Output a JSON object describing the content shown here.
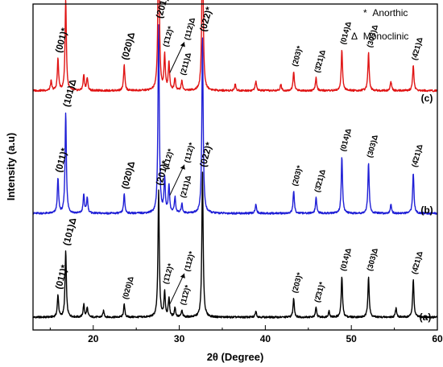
{
  "chart_data": {
    "type": "line",
    "xlabel": "2θ (Degree)",
    "ylabel": "Intensity (a.u)",
    "xlim": [
      13,
      60
    ],
    "xticks": [
      20,
      30,
      40,
      50,
      60
    ],
    "y_ticks_shown": false,
    "grid": false,
    "legend": {
      "position": "top-right",
      "entries": [
        {
          "symbol": "*",
          "label": "Anorthic"
        },
        {
          "symbol": "Δ",
          "label": "Monoclinic"
        }
      ]
    },
    "series": [
      {
        "name": "(a)",
        "color": "#000000",
        "baseline": 0.02,
        "peaks": [
          {
            "x": 15.9,
            "h": 0.07
          },
          {
            "x": 16.8,
            "h": 0.21
          },
          {
            "x": 18.9,
            "h": 0.04
          },
          {
            "x": 19.3,
            "h": 0.03
          },
          {
            "x": 21.2,
            "h": 0.02
          },
          {
            "x": 23.6,
            "h": 0.04
          },
          {
            "x": 27.6,
            "h": 0.4
          },
          {
            "x": 28.3,
            "h": 0.08
          },
          {
            "x": 28.8,
            "h": 0.06
          },
          {
            "x": 29.5,
            "h": 0.03
          },
          {
            "x": 30.3,
            "h": 0.02
          },
          {
            "x": 32.7,
            "h": 0.46
          },
          {
            "x": 38.9,
            "h": 0.02
          },
          {
            "x": 43.3,
            "h": 0.06
          },
          {
            "x": 45.9,
            "h": 0.03
          },
          {
            "x": 47.4,
            "h": 0.02
          },
          {
            "x": 48.9,
            "h": 0.13
          },
          {
            "x": 52.0,
            "h": 0.13
          },
          {
            "x": 55.2,
            "h": 0.03
          },
          {
            "x": 57.2,
            "h": 0.12
          }
        ]
      },
      {
        "name": "(b)",
        "color": "#1f1fd6",
        "baseline": 0.35,
        "peaks": [
          {
            "x": 15.9,
            "h": 0.11
          },
          {
            "x": 16.8,
            "h": 0.32
          },
          {
            "x": 18.9,
            "h": 0.06
          },
          {
            "x": 19.3,
            "h": 0.05
          },
          {
            "x": 23.6,
            "h": 0.06
          },
          {
            "x": 27.6,
            "h": 0.6
          },
          {
            "x": 28.3,
            "h": 0.11
          },
          {
            "x": 28.8,
            "h": 0.09
          },
          {
            "x": 29.5,
            "h": 0.05
          },
          {
            "x": 30.3,
            "h": 0.03
          },
          {
            "x": 32.7,
            "h": 0.56
          },
          {
            "x": 38.9,
            "h": 0.03
          },
          {
            "x": 43.3,
            "h": 0.07
          },
          {
            "x": 45.9,
            "h": 0.05
          },
          {
            "x": 48.9,
            "h": 0.18
          },
          {
            "x": 52.0,
            "h": 0.16
          },
          {
            "x": 54.6,
            "h": 0.03
          },
          {
            "x": 57.2,
            "h": 0.13
          }
        ]
      },
      {
        "name": "(c)",
        "color": "#e01414",
        "baseline": 0.74,
        "peaks": [
          {
            "x": 15.1,
            "h": 0.03
          },
          {
            "x": 15.9,
            "h": 0.1
          },
          {
            "x": 16.8,
            "h": 0.29
          },
          {
            "x": 18.9,
            "h": 0.05
          },
          {
            "x": 19.3,
            "h": 0.04
          },
          {
            "x": 23.6,
            "h": 0.08
          },
          {
            "x": 27.6,
            "h": 0.57
          },
          {
            "x": 28.3,
            "h": 0.11
          },
          {
            "x": 28.8,
            "h": 0.09
          },
          {
            "x": 29.5,
            "h": 0.04
          },
          {
            "x": 30.3,
            "h": 0.03
          },
          {
            "x": 32.7,
            "h": 0.53
          },
          {
            "x": 36.5,
            "h": 0.02
          },
          {
            "x": 38.9,
            "h": 0.03
          },
          {
            "x": 41.8,
            "h": 0.02
          },
          {
            "x": 43.3,
            "h": 0.06
          },
          {
            "x": 45.9,
            "h": 0.04
          },
          {
            "x": 48.9,
            "h": 0.13
          },
          {
            "x": 52.0,
            "h": 0.12
          },
          {
            "x": 54.6,
            "h": 0.03
          },
          {
            "x": 57.2,
            "h": 0.08
          }
        ]
      }
    ],
    "peak_labels": [
      {
        "series": "(a)",
        "x": 15.9,
        "text": "(011)*",
        "big": true
      },
      {
        "series": "(a)",
        "x": 16.8,
        "text": "(101)Δ",
        "big": true
      },
      {
        "series": "(a)",
        "x": 23.6,
        "text": "(020)Δ",
        "big": false
      },
      {
        "series": "(a)",
        "x": 27.6,
        "text": "(201)*",
        "big": true
      },
      {
        "series": "(a)",
        "x": 28.3,
        "text": "(1̄12)*",
        "big": false
      },
      {
        "series": "(a)",
        "x": 29.6,
        "text": "(112)*",
        "big": false,
        "arrow": true
      },
      {
        "series": "(a)",
        "x": 30.3,
        "text": "(11̄2)*",
        "big": false
      },
      {
        "series": "(a)",
        "x": 32.7,
        "text": "(022)*",
        "big": true
      },
      {
        "series": "(a)",
        "x": 43.3,
        "text": "(203)*",
        "big": false
      },
      {
        "series": "(a)",
        "x": 45.9,
        "text": "(2̄31)*",
        "big": false
      },
      {
        "series": "(a)",
        "x": 48.9,
        "text": "(014)Δ",
        "big": false
      },
      {
        "series": "(a)",
        "x": 52.0,
        "text": "(303)Δ",
        "big": false
      },
      {
        "series": "(a)",
        "x": 57.2,
        "text": "(4̄21)Δ",
        "big": false
      },
      {
        "series": "(b)",
        "x": 15.9,
        "text": "(011)*",
        "big": true
      },
      {
        "series": "(b)",
        "x": 16.8,
        "text": "(101)Δ",
        "big": true
      },
      {
        "series": "(b)",
        "x": 23.6,
        "text": "(020)Δ",
        "big": true
      },
      {
        "series": "(b)",
        "x": 27.6,
        "text": "(201)*",
        "big": true
      },
      {
        "series": "(b)",
        "x": 28.3,
        "text": "(1̄12)*",
        "big": false
      },
      {
        "series": "(b)",
        "x": 29.6,
        "text": "(112)*",
        "big": false,
        "arrow": true
      },
      {
        "series": "(b)",
        "x": 30.3,
        "text": "(211)Δ",
        "big": false
      },
      {
        "series": "(b)",
        "x": 32.7,
        "text": "(022)*",
        "big": true
      },
      {
        "series": "(b)",
        "x": 43.3,
        "text": "(203)*",
        "big": false
      },
      {
        "series": "(b)",
        "x": 45.9,
        "text": "(3̄21)Δ",
        "big": false
      },
      {
        "series": "(b)",
        "x": 48.9,
        "text": "(014)Δ",
        "big": false
      },
      {
        "series": "(b)",
        "x": 52.0,
        "text": "(303)Δ",
        "big": false
      },
      {
        "series": "(b)",
        "x": 57.2,
        "text": "(4̄21)Δ",
        "big": false
      },
      {
        "series": "(c)",
        "x": 15.9,
        "text": "(001)*",
        "big": true
      },
      {
        "series": "(c)",
        "x": 16.8,
        "text": "(101)Δ",
        "big": true
      },
      {
        "series": "(c)",
        "x": 23.6,
        "text": "(020)Δ",
        "big": true
      },
      {
        "series": "(c)",
        "x": 27.6,
        "text": "(201)*",
        "big": true
      },
      {
        "series": "(c)",
        "x": 28.3,
        "text": "(1̄12)*",
        "big": false
      },
      {
        "series": "(c)",
        "x": 29.6,
        "text": "(112)Δ",
        "big": false,
        "arrow": true
      },
      {
        "series": "(c)",
        "x": 30.3,
        "text": "(211)Δ",
        "big": false
      },
      {
        "series": "(c)",
        "x": 32.7,
        "text": "(022)Δ",
        "big": true
      },
      {
        "series": "(c)",
        "x": 43.3,
        "text": "(203)*",
        "big": false
      },
      {
        "series": "(c)",
        "x": 45.9,
        "text": "(3̄21)Δ",
        "big": false
      },
      {
        "series": "(c)",
        "x": 48.9,
        "text": "(014)Δ",
        "big": false
      },
      {
        "series": "(c)",
        "x": 52.0,
        "text": "(303)Δ",
        "big": false
      },
      {
        "series": "(c)",
        "x": 57.2,
        "text": "(4̄21)Δ",
        "big": false
      }
    ]
  }
}
